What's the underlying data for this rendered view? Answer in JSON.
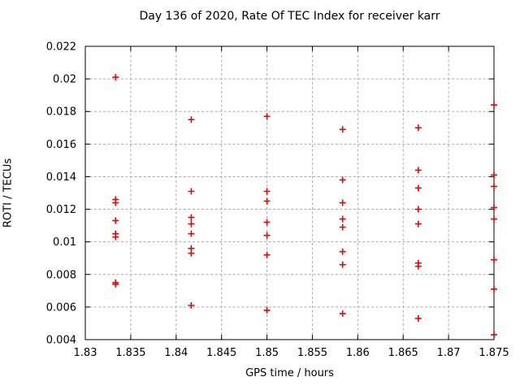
{
  "title": "Day 136 of 2020, Rate Of TEC Index for receiver karr",
  "colors": {
    "marker": "#ee0000",
    "grid": "#aaaaaa",
    "axis": "#000000",
    "background": "#ffffff"
  },
  "chart_data": {
    "type": "scatter",
    "title": "Day 136 of 2020, Rate Of TEC Index for receiver karr",
    "xlabel": "GPS time / hours",
    "ylabel": "ROTI / TECUs",
    "xlim": [
      1.83,
      1.875
    ],
    "ylim": [
      0.004,
      0.022
    ],
    "xticks": [
      1.83,
      1.835,
      1.84,
      1.845,
      1.85,
      1.855,
      1.86,
      1.865,
      1.87,
      1.875
    ],
    "xtick_labels": [
      "1.83",
      "1.835",
      "1.84",
      "1.845",
      "1.85",
      "1.855",
      "1.86",
      "1.865",
      "1.87",
      "1.875"
    ],
    "yticks": [
      0.004,
      0.006,
      0.008,
      0.01,
      0.012,
      0.014,
      0.016,
      0.018,
      0.02,
      0.022
    ],
    "ytick_labels": [
      "0.004",
      "0.006",
      "0.008",
      "0.01",
      "0.012",
      "0.014",
      "0.016",
      "0.018",
      "0.02",
      "0.022"
    ],
    "grid": true,
    "legend": "none",
    "marker": "plus",
    "series": [
      {
        "name": "ROTI",
        "points": [
          [
            1.833333,
            0.0201
          ],
          [
            1.833333,
            0.0126
          ],
          [
            1.833333,
            0.0124
          ],
          [
            1.833333,
            0.0113
          ],
          [
            1.833333,
            0.0105
          ],
          [
            1.833333,
            0.0103
          ],
          [
            1.833333,
            0.0075
          ],
          [
            1.833333,
            0.0074
          ],
          [
            1.841667,
            0.0175
          ],
          [
            1.841667,
            0.0131
          ],
          [
            1.841667,
            0.0115
          ],
          [
            1.841667,
            0.0111
          ],
          [
            1.841667,
            0.0105
          ],
          [
            1.841667,
            0.0096
          ],
          [
            1.841667,
            0.0093
          ],
          [
            1.841667,
            0.0061
          ],
          [
            1.85,
            0.0177
          ],
          [
            1.85,
            0.0131
          ],
          [
            1.85,
            0.0125
          ],
          [
            1.85,
            0.0112
          ],
          [
            1.85,
            0.0104
          ],
          [
            1.85,
            0.0092
          ],
          [
            1.85,
            0.0058
          ],
          [
            1.858333,
            0.0169
          ],
          [
            1.858333,
            0.0138
          ],
          [
            1.858333,
            0.0124
          ],
          [
            1.858333,
            0.0114
          ],
          [
            1.858333,
            0.0109
          ],
          [
            1.858333,
            0.0094
          ],
          [
            1.858333,
            0.0086
          ],
          [
            1.858333,
            0.0056
          ],
          [
            1.866667,
            0.017
          ],
          [
            1.866667,
            0.0144
          ],
          [
            1.866667,
            0.0133
          ],
          [
            1.866667,
            0.012
          ],
          [
            1.866667,
            0.0111
          ],
          [
            1.866667,
            0.0087
          ],
          [
            1.866667,
            0.0085
          ],
          [
            1.866667,
            0.0053
          ],
          [
            1.875,
            0.0184
          ],
          [
            1.875,
            0.0141
          ],
          [
            1.875,
            0.0134
          ],
          [
            1.875,
            0.0121
          ],
          [
            1.875,
            0.0114
          ],
          [
            1.875,
            0.0089
          ],
          [
            1.875,
            0.0071
          ],
          [
            1.875,
            0.0043
          ]
        ]
      }
    ]
  }
}
